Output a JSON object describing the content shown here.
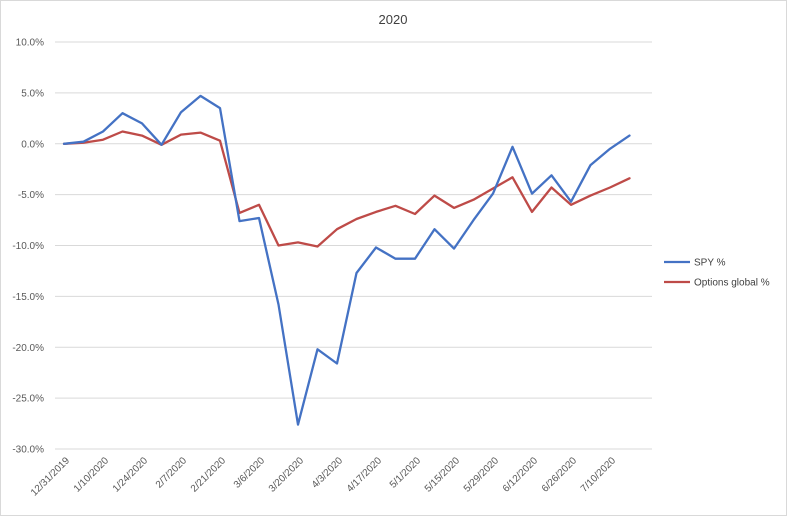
{
  "chart_data": {
    "type": "line",
    "title": "2020",
    "xlabel": "",
    "ylabel": "",
    "ylim": [
      -30,
      10
    ],
    "y_ticks": [
      "10.0%",
      "5.0%",
      "0.0%",
      "-5.0%",
      "-10.0%",
      "-15.0%",
      "-20.0%",
      "-25.0%",
      "-30.0%"
    ],
    "x_tick_labels": [
      "12/31/2019",
      "1/10/2020",
      "1/24/2020",
      "2/7/2020",
      "2/21/2020",
      "3/6/2020",
      "3/20/2020",
      "4/3/2020",
      "4/17/2020",
      "5/1/2020",
      "5/15/2020",
      "5/29/2020",
      "6/12/2020",
      "6/26/2020",
      "7/10/2020"
    ],
    "grid": true,
    "legend_position": "right",
    "series": [
      {
        "name": "SPY %",
        "color": "#4472c4",
        "values": [
          0.0,
          0.2,
          1.2,
          3.0,
          2.0,
          -0.1,
          3.1,
          4.7,
          3.5,
          -7.6,
          -7.3,
          -15.8,
          -27.6,
          -20.2,
          -21.6,
          -12.7,
          -10.2,
          -11.3,
          -11.3,
          -8.4,
          -10.3,
          -7.5,
          -4.9,
          -0.3,
          -4.9,
          -3.1,
          -5.7,
          -2.1,
          -0.5,
          0.8
        ]
      },
      {
        "name": "Options global %",
        "color": "#be4b48",
        "values": [
          0.0,
          0.1,
          0.4,
          1.2,
          0.8,
          -0.1,
          0.9,
          1.1,
          0.3,
          -6.8,
          -6.0,
          -10.0,
          -9.7,
          -10.1,
          -8.4,
          -7.4,
          -6.7,
          -6.1,
          -6.9,
          -5.1,
          -6.3,
          -5.5,
          -4.4,
          -3.3,
          -6.7,
          -4.3,
          -6.0,
          -5.1,
          -4.3,
          -3.4
        ]
      }
    ]
  }
}
